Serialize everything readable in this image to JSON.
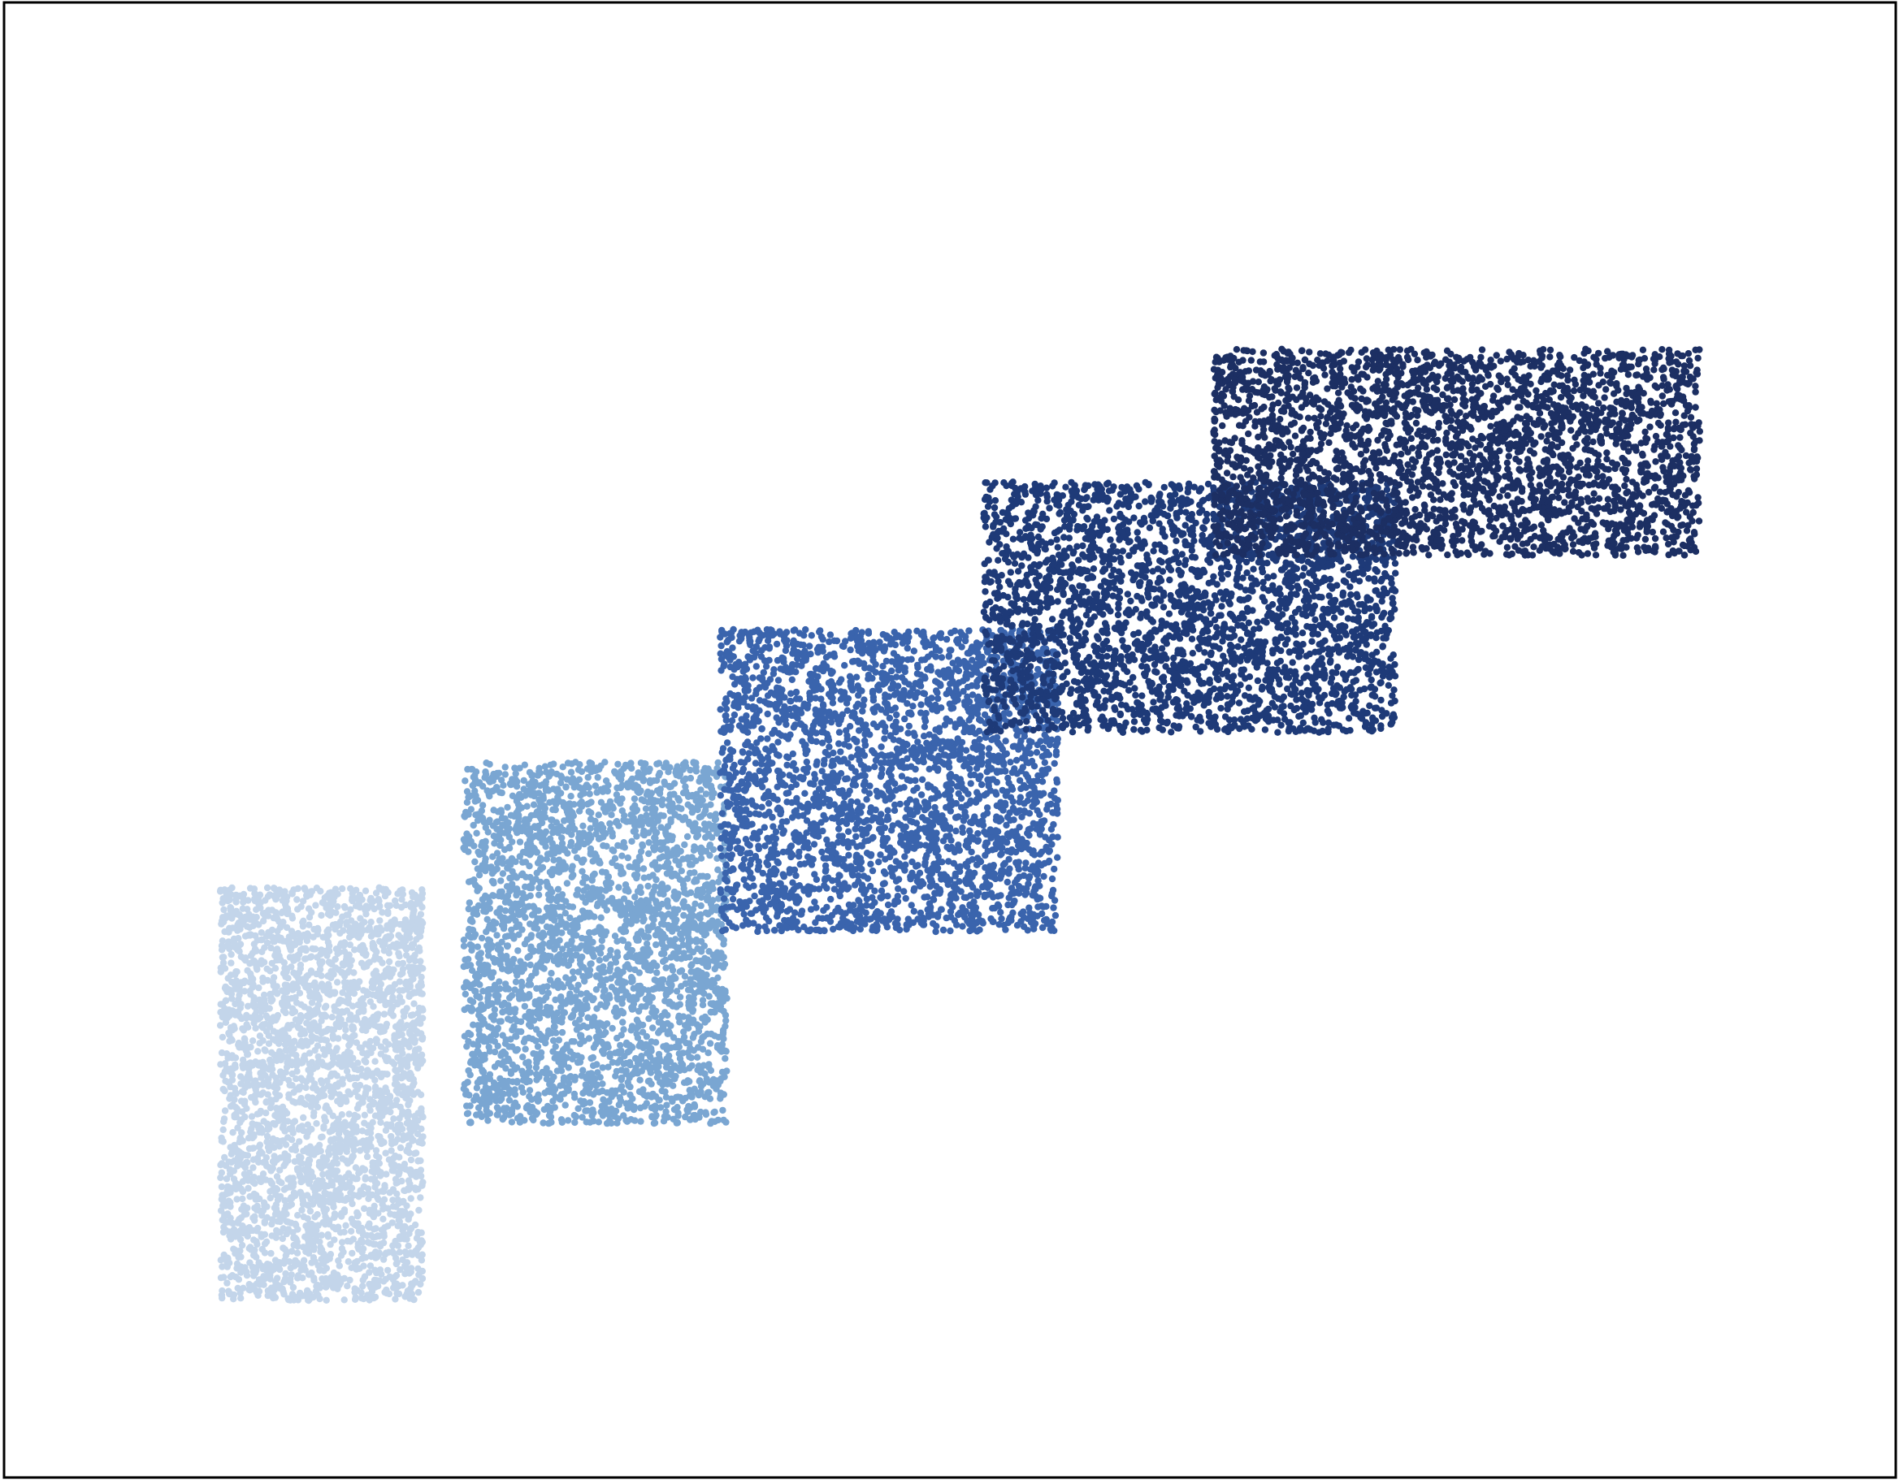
{
  "chart_data": {
    "type": "scatter",
    "title": "",
    "xlabel": "",
    "ylabel": "",
    "grid": false,
    "axes_ticks_visible": false,
    "xlim": [
      0,
      14
    ],
    "ylim": [
      0,
      10
    ],
    "points_per_cluster": 3000,
    "clusters": [
      {
        "color": "#c3d5ea",
        "x_range": [
          1.6,
          3.1
        ],
        "y_range": [
          1.2,
          4.0
        ]
      },
      {
        "color": "#7aa6d2",
        "x_range": [
          3.4,
          5.35
        ],
        "y_range": [
          2.4,
          4.85
        ]
      },
      {
        "color": "#3a64ad",
        "x_range": [
          5.3,
          7.8
        ],
        "y_range": [
          3.7,
          5.75
        ]
      },
      {
        "color": "#1e3a78",
        "x_range": [
          7.25,
          10.3
        ],
        "y_range": [
          5.05,
          6.75
        ]
      },
      {
        "color": "#1c2f63",
        "x_range": [
          8.95,
          12.55
        ],
        "y_range": [
          6.25,
          7.65
        ]
      }
    ]
  }
}
